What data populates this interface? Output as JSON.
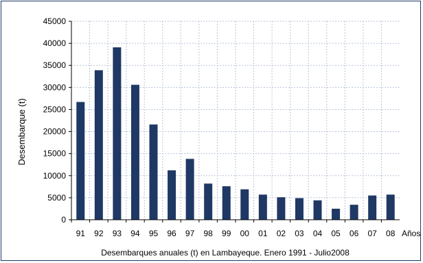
{
  "chart_data": {
    "type": "bar",
    "title": "",
    "caption": "Desembarques anuales (t) en Lambayeque. Enero 1991 - Julio2008",
    "xlabel": "Años",
    "ylabel": "Desembarque (t)",
    "ylim": [
      0,
      45000
    ],
    "yticks": [
      "0",
      "5000",
      "10000",
      "15000",
      "20000",
      "25000",
      "30000",
      "35000",
      "40000",
      "45000"
    ],
    "categories": [
      "91",
      "92",
      "93",
      "94",
      "95",
      "96",
      "97",
      "98",
      "99",
      "00",
      "01",
      "02",
      "03",
      "04",
      "05",
      "06",
      "07",
      "08"
    ],
    "values": [
      26700,
      33900,
      39100,
      30600,
      21600,
      11200,
      13800,
      8200,
      7600,
      6900,
      5700,
      5100,
      4900,
      4400,
      2500,
      3400,
      5500,
      5700
    ],
    "grid": true,
    "legend": "none",
    "colors": {
      "bar": "#1f3864",
      "frame": "#1f3864",
      "grid": "#b7c3d9",
      "axis": "#000000"
    }
  }
}
